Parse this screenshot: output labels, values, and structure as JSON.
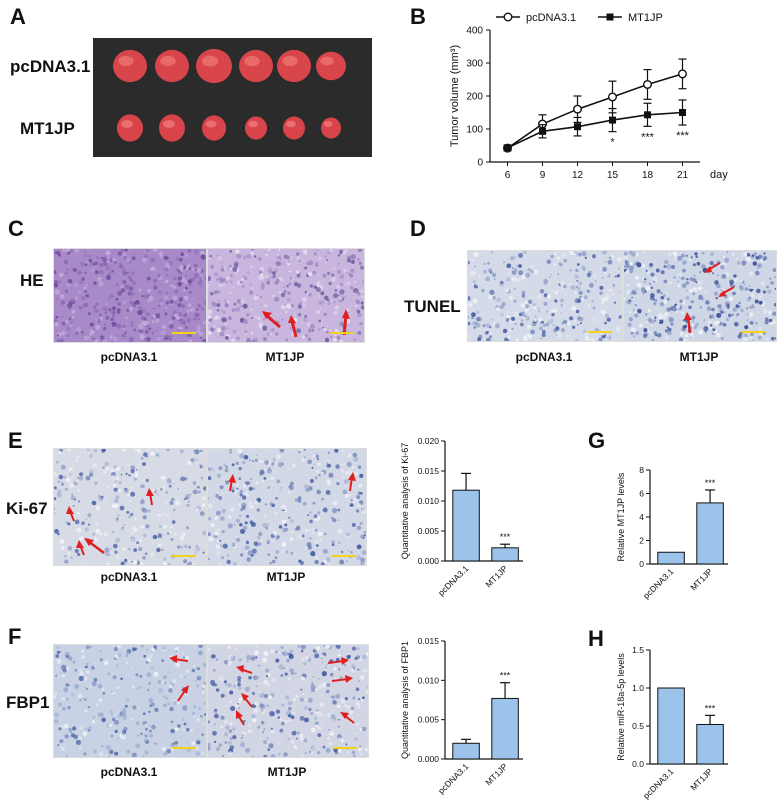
{
  "panels": {
    "A": {
      "letter": "A",
      "rows": [
        "pcDNA3.1",
        "MT1JP"
      ],
      "tumor_count": 6
    },
    "B": {
      "letter": "B"
    },
    "C": {
      "letter": "C",
      "side_label": "HE",
      "captions": [
        "pcDNA3.1",
        "MT1JP"
      ]
    },
    "D": {
      "letter": "D",
      "side_label": "TUNEL",
      "captions": [
        "pcDNA3.1",
        "MT1JP"
      ]
    },
    "E": {
      "letter": "E",
      "side_label": "Ki-67",
      "captions": [
        "pcDNA3.1",
        "MT1JP"
      ]
    },
    "F": {
      "letter": "F",
      "side_label": "FBP1",
      "captions": [
        "pcDNA3.1",
        "MT1JP"
      ]
    },
    "G": {
      "letter": "G"
    },
    "H": {
      "letter": "H"
    }
  },
  "colors": {
    "bar_fill": "#9cc3ea",
    "arrow": "#e02020",
    "he_stain": "#a98ac8",
    "ihc_bg": "#d9dde8",
    "scale_bar": "#f2d21b"
  },
  "chart_data": [
    {
      "id": "B",
      "type": "line",
      "x": [
        6,
        9,
        12,
        15,
        18,
        21
      ],
      "xlabel": "day",
      "ylabel": "Tumor volume (mm³)",
      "ylim": [
        0,
        400
      ],
      "yticks": [
        0,
        100,
        200,
        300,
        400
      ],
      "legend_position": "top",
      "series": [
        {
          "name": "pcDNA3.1",
          "marker": "open-circle",
          "values": [
            42,
            115,
            160,
            197,
            235,
            267
          ],
          "errors": [
            8,
            28,
            40,
            48,
            45,
            45
          ]
        },
        {
          "name": "MT1JP",
          "marker": "filled-square",
          "values": [
            43,
            93,
            107,
            127,
            143,
            150
          ],
          "errors": [
            8,
            20,
            28,
            35,
            35,
            38
          ]
        }
      ],
      "annotations": [
        "",
        "",
        "",
        "*",
        "***",
        "***"
      ]
    },
    {
      "id": "E-chart",
      "type": "bar",
      "categories": [
        "pcDNA3.1",
        "MT1JP"
      ],
      "values": [
        0.0118,
        0.0022
      ],
      "errors": [
        0.0028,
        0.0006
      ],
      "ylabel": "Quantitative analysis of Ki-67",
      "ylim": [
        0,
        0.02
      ],
      "yticks": [
        "0.000",
        "0.005",
        "0.010",
        "0.015",
        "0.020"
      ],
      "ytick_values": [
        0,
        0.005,
        0.01,
        0.015,
        0.02
      ],
      "annotations": [
        "",
        "***"
      ]
    },
    {
      "id": "G",
      "type": "bar",
      "categories": [
        "pcDNA3.1",
        "MT1JP"
      ],
      "values": [
        1,
        5.2
      ],
      "errors": [
        0,
        1.1
      ],
      "ylabel": "Relative MT1JP levels",
      "ylim": [
        0,
        8
      ],
      "yticks": [
        "0",
        "2",
        "4",
        "6",
        "8"
      ],
      "ytick_values": [
        0,
        2,
        4,
        6,
        8
      ],
      "annotations": [
        "",
        "***"
      ]
    },
    {
      "id": "F-chart",
      "type": "bar",
      "categories": [
        "pcDNA3.1",
        "MT1JP"
      ],
      "values": [
        0.002,
        0.0077
      ],
      "errors": [
        0.0005,
        0.002
      ],
      "ylabel": "Quantitative analysis of FBP1",
      "ylim": [
        0,
        0.015
      ],
      "yticks": [
        "0.000",
        "0.005",
        "0.010",
        "0.015"
      ],
      "ytick_values": [
        0,
        0.005,
        0.01,
        0.015
      ],
      "annotations": [
        "",
        "***"
      ]
    },
    {
      "id": "H",
      "type": "bar",
      "categories": [
        "pcDNA3.1",
        "MT1JP"
      ],
      "values": [
        1,
        0.52
      ],
      "errors": [
        0,
        0.12
      ],
      "ylabel": "Relative miR-18a-5p levels",
      "ylim": [
        0,
        1.5
      ],
      "yticks": [
        "0.0",
        "0.5",
        "1.0",
        "1.5"
      ],
      "ytick_values": [
        0,
        0.5,
        1.0,
        1.5
      ],
      "annotations": [
        "",
        "***"
      ]
    }
  ]
}
